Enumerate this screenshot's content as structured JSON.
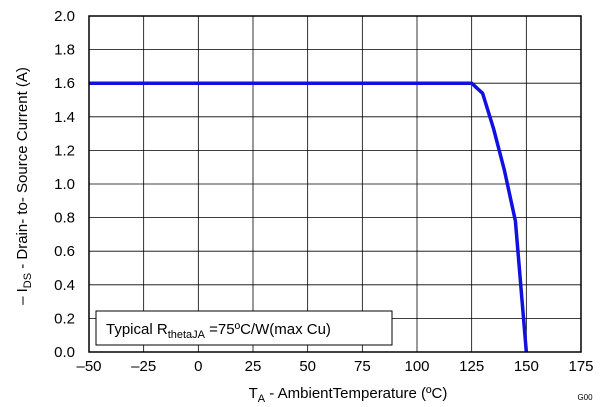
{
  "chart_data": {
    "type": "line",
    "xlabel": {
      "main": "T",
      "sub": "A",
      "rest": " - AmbientTemperature (ºC)"
    },
    "ylabel": {
      "pre": "– I",
      "sub": "DS",
      "rest": " - Drain- to- Source Current (A)"
    },
    "xlim": [
      -50,
      175
    ],
    "ylim": [
      0,
      2.0
    ],
    "x_ticks": [
      -50,
      -25,
      0,
      25,
      50,
      75,
      100,
      125,
      150,
      175
    ],
    "x_tick_labels": [
      "–50",
      "–25",
      "0",
      "25",
      "50",
      "75",
      "100",
      "125",
      "150",
      "175"
    ],
    "y_ticks": [
      0,
      0.2,
      0.4,
      0.6,
      0.8,
      1.0,
      1.2,
      1.4,
      1.6,
      1.8,
      2.0
    ],
    "y_tick_labels": [
      "0.0",
      "0.2",
      "0.4",
      "0.6",
      "0.8",
      "1.0",
      "1.2",
      "1.4",
      "1.6",
      "1.8",
      "2.0"
    ],
    "grid": true,
    "series": [
      {
        "color": "#1010e0",
        "x": [
          -50,
          125,
          130,
          135,
          140,
          145,
          150
        ],
        "y": [
          1.6,
          1.6,
          1.54,
          1.33,
          1.08,
          0.78,
          0
        ]
      }
    ],
    "annotation": {
      "pre": "Typical R",
      "sub": "thetaJA",
      "rest": " =75ºC/W(max Cu)"
    },
    "figure_code": "G00"
  }
}
